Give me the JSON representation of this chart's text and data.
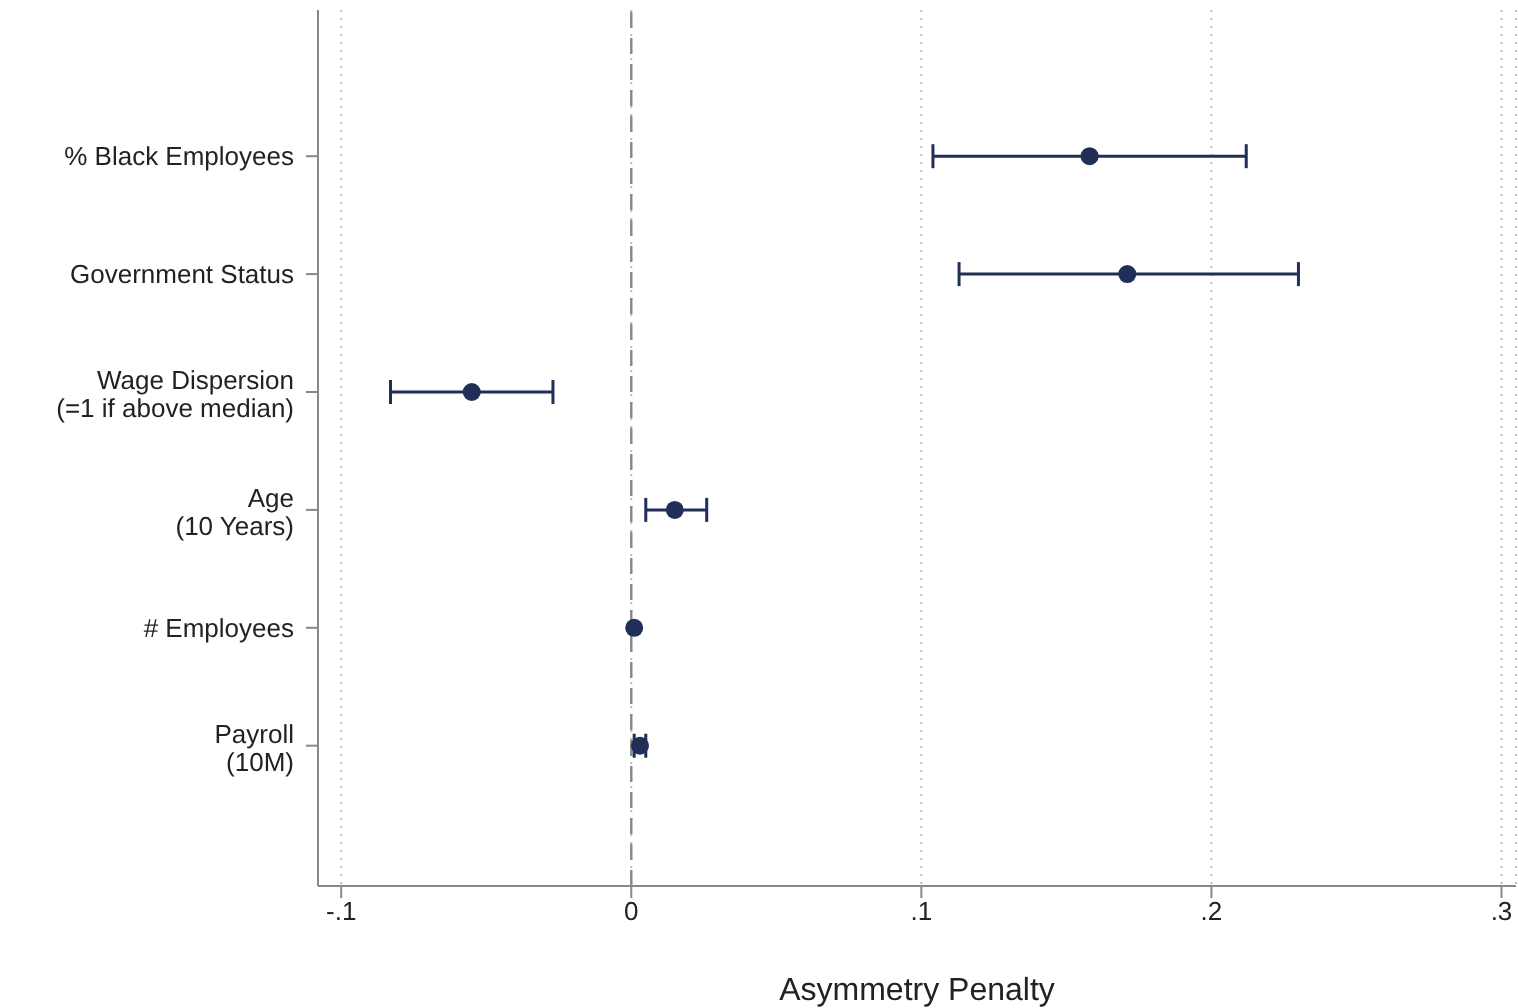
{
  "chart_data": {
    "type": "scatter",
    "orientation": "horizontal",
    "xlabel": "Asymmetry Penalty",
    "categories": [
      "% Black Employees",
      "Government Status",
      "Wage Dispersion\n(=1 if above median)",
      "Age\n(10 Years)",
      "# Employees",
      "Payroll\n(10M)"
    ],
    "values": [
      0.158,
      0.171,
      -0.055,
      0.015,
      0.001,
      0.003
    ],
    "errors": [
      [
        0.104,
        0.212
      ],
      [
        0.113,
        0.23
      ],
      [
        -0.083,
        -0.027
      ],
      [
        0.005,
        0.026
      ],
      null,
      [
        0.001,
        0.005
      ]
    ],
    "color": "#1f2f57",
    "marker": "circle",
    "xlim": [
      -0.108,
      0.305
    ],
    "xticks": [
      {
        "value": -0.1,
        "label": "-.1"
      },
      0,
      {
        "value": 0.1,
        "label": ".1"
      },
      {
        "value": 0.2,
        "label": ".2"
      },
      {
        "value": 0.3,
        "label": ".3"
      }
    ],
    "ref_lines": [
      {
        "axis": "x",
        "value": 0,
        "color": "#888888",
        "line_style": "dashed"
      }
    ],
    "grid": "x"
  }
}
